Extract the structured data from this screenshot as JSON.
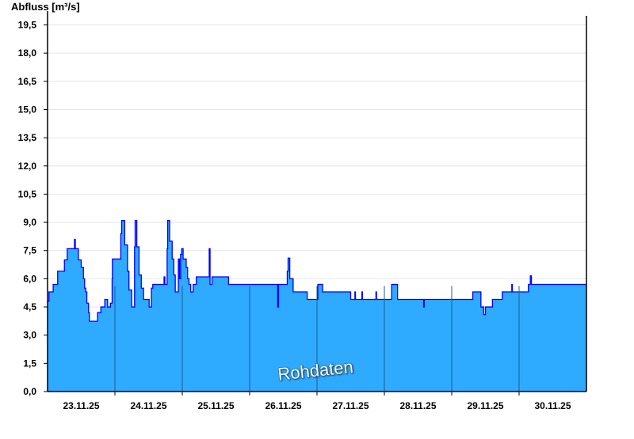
{
  "chart_data": {
    "type": "area",
    "ylabel": "Abfluss [m³/s]",
    "watermark": "Rohdaten",
    "ylim": [
      0,
      19.9
    ],
    "xlim": [
      "23.11.25 00:00",
      "01.12.25 00:00"
    ],
    "yticks": [
      "0,0",
      "1,5",
      "3,0",
      "4,5",
      "6,0",
      "7,5",
      "9,0",
      "10,5",
      "12,0",
      "13,5",
      "15,0",
      "16,5",
      "18,0",
      "19,5"
    ],
    "xticks": [
      "23.11.25",
      "24.11.25",
      "25.11.25",
      "26.11.25",
      "27.11.25",
      "28.11.25",
      "29.11.25",
      "30.11.25"
    ],
    "grid": "horizontal",
    "colors": {
      "fill": "#2eaaff",
      "line": "#0000ff",
      "day_separator": "#1f5f8f",
      "grid": "#e6e6e6"
    },
    "series": [
      {
        "step": true,
        "points": [
          [
            "23.11.25 00:00",
            4.8
          ],
          [
            "23.11.25 00:30",
            5.3
          ],
          [
            "23.11.25 02:00",
            5.7
          ],
          [
            "23.11.25 03:36",
            6.4
          ],
          [
            "23.11.25 06:00",
            7.0
          ],
          [
            "23.11.25 07:00",
            7.6
          ],
          [
            "23.11.25 09:36",
            8.1
          ],
          [
            "23.11.25 09:54",
            7.6
          ],
          [
            "23.11.25 11:00",
            7.0
          ],
          [
            "23.11.25 12:00",
            6.6
          ],
          [
            "23.11.25 12:48",
            6.0
          ],
          [
            "23.11.25 13:12",
            5.5
          ],
          [
            "23.11.25 13:36",
            5.3
          ],
          [
            "23.11.25 14:00",
            4.7
          ],
          [
            "23.11.25 14:36",
            4.2
          ],
          [
            "23.11.25 14:54",
            3.74
          ],
          [
            "23.11.25 17:48",
            4.2
          ],
          [
            "23.11.25 19:00",
            4.5
          ],
          [
            "23.11.25 20:24",
            4.9
          ],
          [
            "23.11.25 21:24",
            4.5
          ],
          [
            "23.11.25 22:24",
            4.7
          ],
          [
            "23.11.25 23:00",
            6.0
          ],
          [
            "23.11.25 23:06",
            7.05
          ],
          [
            "24.11.25 02:06",
            8.4
          ],
          [
            "24.11.25 02:24",
            9.1
          ],
          [
            "24.11.25 03:30",
            7.8
          ],
          [
            "24.11.25 04:30",
            6.4
          ],
          [
            "24.11.25 05:00",
            5.4
          ],
          [
            "24.11.25 06:00",
            4.5
          ],
          [
            "24.11.25 07:00",
            7.7
          ],
          [
            "24.11.25 07:12",
            9.1
          ],
          [
            "24.11.25 07:48",
            7.7
          ],
          [
            "24.11.25 08:36",
            6.2
          ],
          [
            "24.11.25 09:24",
            5.5
          ],
          [
            "24.11.25 10:12",
            4.9
          ],
          [
            "24.11.25 12:12",
            4.5
          ],
          [
            "24.11.25 13:00",
            5.5
          ],
          [
            "24.11.25 13:30",
            5.7
          ],
          [
            "24.11.25 17:30",
            6.1
          ],
          [
            "24.11.25 17:48",
            5.7
          ],
          [
            "24.11.25 18:36",
            7.6
          ],
          [
            "24.11.25 18:48",
            9.1
          ],
          [
            "24.11.25 19:30",
            8.0
          ],
          [
            "24.11.25 20:24",
            7.05
          ],
          [
            "24.11.25 21:00",
            6.2
          ],
          [
            "24.11.25 21:30",
            5.3
          ],
          [
            "24.11.25 22:36",
            7.05
          ],
          [
            "24.11.25 23:00",
            6.0
          ],
          [
            "24.11.25 23:24",
            7.3
          ],
          [
            "24.11.25 23:48",
            7.6
          ],
          [
            "25.11.25 00:18",
            7.05
          ],
          [
            "25.11.25 01:24",
            6.6
          ],
          [
            "25.11.25 01:54",
            6.0
          ],
          [
            "25.11.25 02:24",
            5.7
          ],
          [
            "25.11.25 03:00",
            5.3
          ],
          [
            "25.11.25 03:54",
            5.7
          ],
          [
            "25.11.25 05:00",
            6.1
          ],
          [
            "25.11.25 09:36",
            7.6
          ],
          [
            "25.11.25 09:54",
            5.7
          ],
          [
            "25.11.25 10:36",
            6.1
          ],
          [
            "25.11.25 16:30",
            5.7
          ],
          [
            "26.11.25 10:00",
            4.5
          ],
          [
            "26.11.25 10:18",
            5.7
          ],
          [
            "26.11.25 13:24",
            6.4
          ],
          [
            "26.11.25 13:42",
            7.1
          ],
          [
            "26.11.25 14:18",
            6.0
          ],
          [
            "26.11.25 15:30",
            5.3
          ],
          [
            "26.11.25 20:30",
            4.9
          ],
          [
            "27.11.25 00:18",
            5.7
          ],
          [
            "27.11.25 02:00",
            5.3
          ],
          [
            "27.11.25 12:00",
            4.9
          ],
          [
            "27.11.25 13:30",
            5.3
          ],
          [
            "27.11.25 13:42",
            4.9
          ],
          [
            "27.11.25 16:00",
            5.3
          ],
          [
            "27.11.25 16:12",
            4.9
          ],
          [
            "27.11.25 21:00",
            5.3
          ],
          [
            "27.11.25 21:12",
            4.9
          ],
          [
            "28.11.25 02:36",
            5.7
          ],
          [
            "28.11.25 04:42",
            4.9
          ],
          [
            "28.11.25 14:00",
            4.5
          ],
          [
            "28.11.25 14:12",
            4.9
          ],
          [
            "29.11.25 07:30",
            5.3
          ],
          [
            "29.11.25 10:24",
            4.5
          ],
          [
            "29.11.25 11:24",
            4.1
          ],
          [
            "29.11.25 12:00",
            4.5
          ],
          [
            "29.11.25 14:30",
            4.9
          ],
          [
            "29.11.25 18:00",
            5.3
          ],
          [
            "29.11.25 21:24",
            5.7
          ],
          [
            "29.11.25 21:36",
            5.3
          ],
          [
            "30.11.25 03:18",
            5.7
          ],
          [
            "30.11.25 04:00",
            6.15
          ],
          [
            "30.11.25 04:24",
            5.7
          ],
          [
            "01.12.25 00:00",
            5.7
          ]
        ]
      }
    ]
  }
}
